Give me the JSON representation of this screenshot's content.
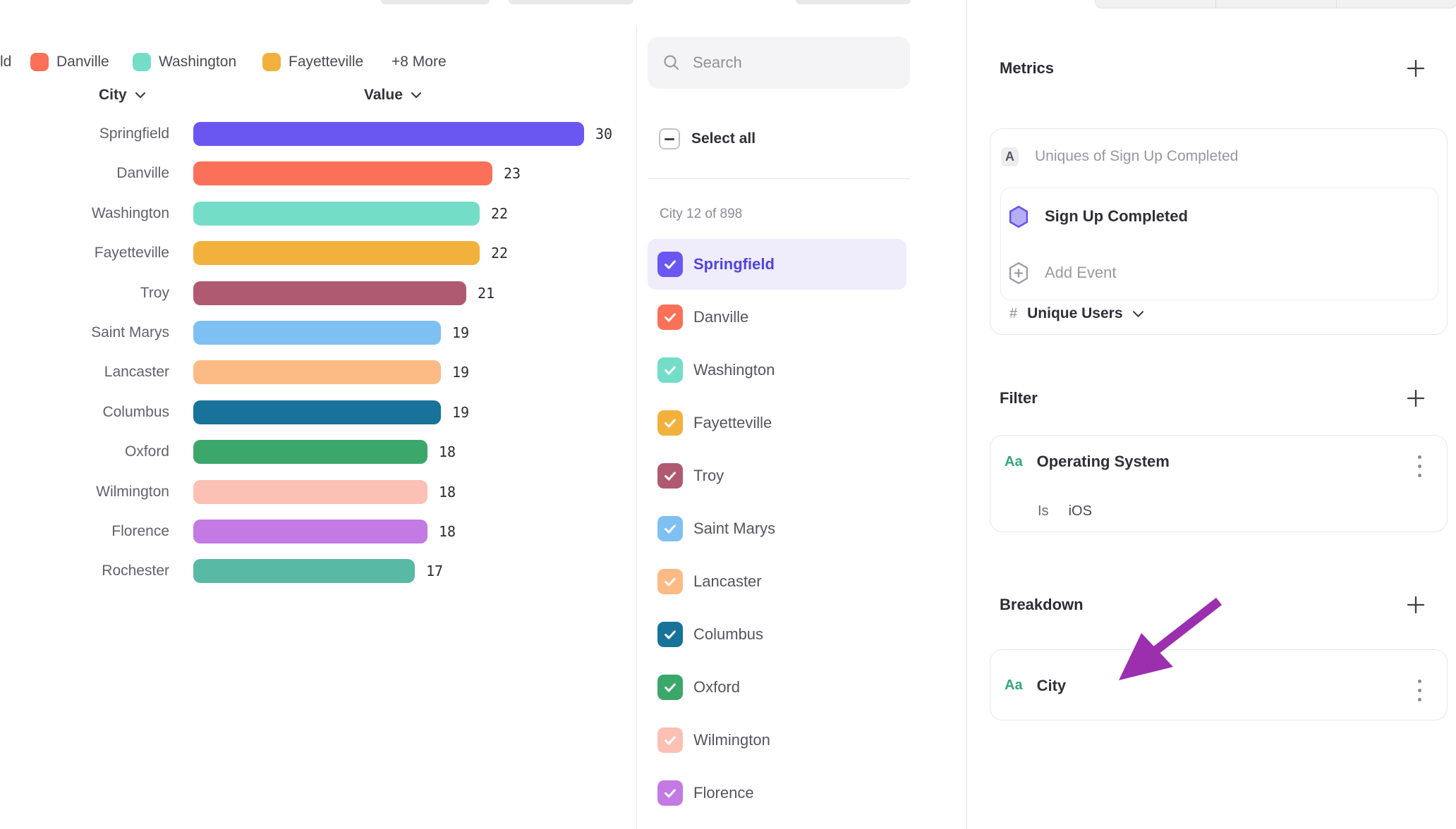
{
  "chart": {
    "legend": {
      "clipped_item": "ld",
      "items": [
        {
          "label": "Danville",
          "color": "#fa7058"
        },
        {
          "label": "Washington",
          "color": "#74ddc8"
        },
        {
          "label": "Fayetteville",
          "color": "#f2b13d"
        }
      ],
      "more_label": "+8 More"
    },
    "columns": {
      "category": "City",
      "value": "Value"
    }
  },
  "chart_data": {
    "type": "bar",
    "orientation": "horizontal",
    "title": "",
    "xlabel": "Value",
    "ylabel": "City",
    "xlim": [
      0,
      30
    ],
    "grid": false,
    "legend_position": "top",
    "categories": [
      "Springfield",
      "Danville",
      "Washington",
      "Fayetteville",
      "Troy",
      "Saint Marys",
      "Lancaster",
      "Columbus",
      "Oxford",
      "Wilmington",
      "Florence",
      "Rochester"
    ],
    "values": [
      30,
      23,
      22,
      22,
      21,
      19,
      19,
      19,
      18,
      18,
      18,
      17
    ],
    "colors": [
      "#6a57f2",
      "#fa7058",
      "#74ddc8",
      "#f2b13d",
      "#b05a72",
      "#7fc0f2",
      "#fcbb84",
      "#17739a",
      "#3ba76b",
      "#fcc0b5",
      "#c47ae3",
      "#58b9a5"
    ]
  },
  "list_panel": {
    "search_placeholder": "Search",
    "select_all_label": "Select all",
    "select_all_state": "indeterminate",
    "count_label": "City 12 of 898",
    "items": [
      {
        "label": "Springfield",
        "color": "#6a57f2",
        "checked": true,
        "highlighted": true
      },
      {
        "label": "Danville",
        "color": "#fa7058",
        "checked": true,
        "highlighted": false
      },
      {
        "label": "Washington",
        "color": "#74ddc8",
        "checked": true,
        "highlighted": false
      },
      {
        "label": "Fayetteville",
        "color": "#f2b13d",
        "checked": true,
        "highlighted": false
      },
      {
        "label": "Troy",
        "color": "#b05a72",
        "checked": true,
        "highlighted": false
      },
      {
        "label": "Saint Marys",
        "color": "#7fc0f2",
        "checked": true,
        "highlighted": false
      },
      {
        "label": "Lancaster",
        "color": "#fcbb84",
        "checked": true,
        "highlighted": false
      },
      {
        "label": "Columbus",
        "color": "#17739a",
        "checked": true,
        "highlighted": false
      },
      {
        "label": "Oxford",
        "color": "#3ba76b",
        "checked": true,
        "highlighted": false
      },
      {
        "label": "Wilmington",
        "color": "#fcc0b5",
        "checked": true,
        "highlighted": false
      },
      {
        "label": "Florence",
        "color": "#c47ae3",
        "checked": true,
        "highlighted": false
      }
    ]
  },
  "right_panel": {
    "metrics": {
      "title": "Metrics",
      "badge": "A",
      "summary": "Uniques of Sign Up Completed",
      "event_name": "Sign Up Completed",
      "add_event_label": "Add Event",
      "aggregation_prefix": "#",
      "aggregation": "Unique Users"
    },
    "filter": {
      "title": "Filter",
      "type_badge": "Aa",
      "property": "Operating System",
      "operator": "Is",
      "value": "iOS"
    },
    "breakdown": {
      "title": "Breakdown",
      "type_badge": "Aa",
      "property": "City"
    },
    "annotation_arrow_color": "#9b2fae"
  }
}
